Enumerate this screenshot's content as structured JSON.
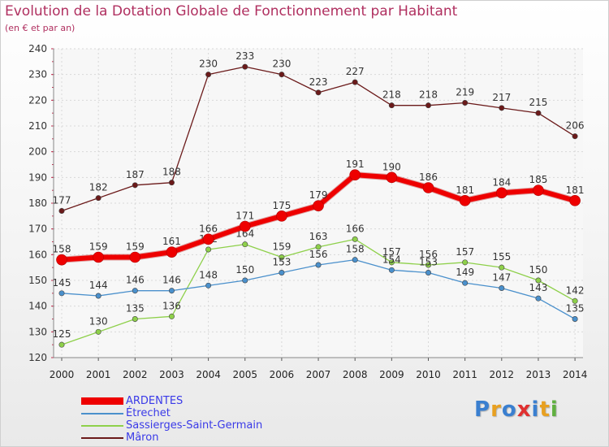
{
  "chart_data": {
    "type": "line",
    "title": "Evolution de la Dotation Globale de Fonctionnement par Habitant",
    "subtitle": "(en € et par an)",
    "x": [
      "2000",
      "2001",
      "2002",
      "2003",
      "2004",
      "2005",
      "2006",
      "2007",
      "2008",
      "2009",
      "2010",
      "2011",
      "2012",
      "2013",
      "2014"
    ],
    "ylim": [
      120,
      240
    ],
    "yticks": [
      120,
      130,
      140,
      150,
      160,
      170,
      180,
      190,
      200,
      210,
      220,
      230,
      240
    ],
    "grid": true,
    "legend_position": "bottom-left",
    "series": [
      {
        "name": "Mâron",
        "color": "#6b1a1a",
        "values": [
          177,
          182,
          187,
          188,
          230,
          233,
          230,
          223,
          227,
          218,
          218,
          219,
          217,
          215,
          206
        ]
      },
      {
        "name": "Sassierges-Saint-Germain",
        "color": "#8ed04a",
        "values": [
          125,
          130,
          135,
          136,
          162,
          164,
          159,
          163,
          166,
          157,
          156,
          157,
          155,
          150,
          142
        ]
      },
      {
        "name": "Étrechet",
        "color": "#4a90cc",
        "values": [
          145,
          144,
          146,
          146,
          148,
          150,
          153,
          156,
          158,
          154,
          153,
          149,
          147,
          143,
          135
        ]
      },
      {
        "name": "ARDENTES",
        "color": "#ee0000",
        "values": [
          158,
          159,
          159,
          161,
          166,
          171,
          175,
          179,
          191,
          190,
          186,
          181,
          184,
          185,
          181
        ]
      }
    ],
    "legend_order": [
      "ARDENTES",
      "Étrechet",
      "Sassierges-Saint-Germain",
      "Mâron"
    ]
  },
  "logo": {
    "text": "Proxiti",
    "colors": [
      "#3a7fd0",
      "#e8a020",
      "#3a7fd0",
      "#e03030",
      "#3a7fd0",
      "#e8a020",
      "#60b040"
    ]
  }
}
